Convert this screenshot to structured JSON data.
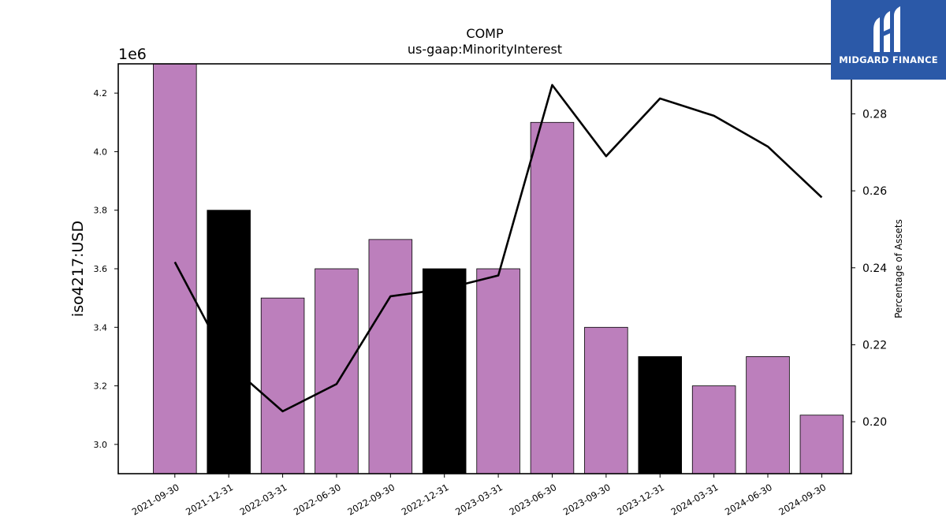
{
  "brand": {
    "name": "MIDGARD FINANCE",
    "logo_color": "#2b59a8"
  },
  "chart_data": {
    "type": "bar",
    "title": "COMP",
    "subtitle": "us-gaap:MinorityInterest",
    "ylabel": "iso4217:USD",
    "y_offset_label": "1e6",
    "y2label": "Percentage of Assets",
    "categories": [
      "2021-09-30",
      "2021-12-31",
      "2022-03-31",
      "2022-06-30",
      "2022-09-30",
      "2022-12-31",
      "2023-03-31",
      "2023-06-30",
      "2023-09-30",
      "2023-12-31",
      "2024-03-31",
      "2024-06-30",
      "2024-09-30"
    ],
    "values": [
      4300000,
      3800000,
      3500000,
      3600000,
      3700000,
      3600000,
      3600000,
      4100000,
      3400000,
      3300000,
      3200000,
      3300000,
      3100000
    ],
    "bar_colors": [
      "#bc7fbc",
      "#000000",
      "#bc7fbc",
      "#bc7fbc",
      "#bc7fbc",
      "#000000",
      "#bc7fbc",
      "#bc7fbc",
      "#bc7fbc",
      "#000000",
      "#bc7fbc",
      "#bc7fbc",
      "#bc7fbc"
    ],
    "ylim": [
      2900000,
      4300000
    ],
    "yticks": [
      3.0,
      3.2,
      3.4,
      3.6,
      3.8,
      4.0,
      4.2
    ],
    "line_series": {
      "axis": "right",
      "color": "#000000",
      "values": [
        0.2415,
        0.215,
        0.2027,
        0.2098,
        0.2326,
        0.2345,
        0.238,
        0.2875,
        0.269,
        0.284,
        0.2795,
        0.2715,
        0.2583
      ]
    },
    "y2lim": [
      0.1865,
      0.293
    ],
    "y2ticks": [
      0.2,
      0.22,
      0.24,
      0.26,
      0.28
    ],
    "grid": false
  }
}
